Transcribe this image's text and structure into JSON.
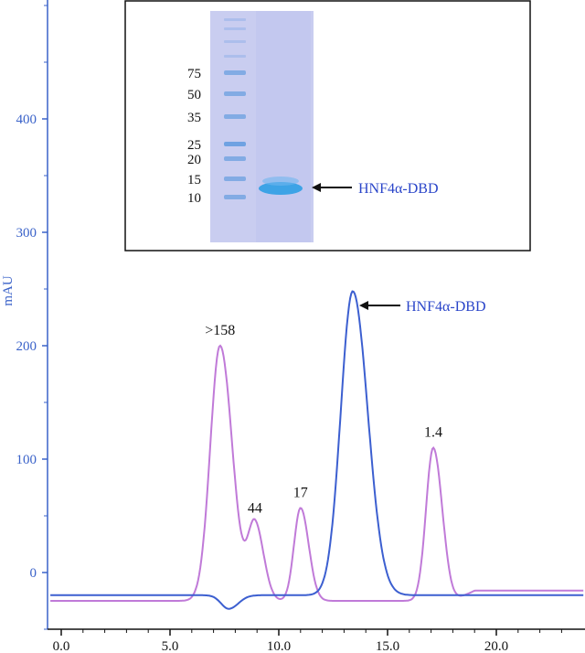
{
  "chart_data": {
    "type": "line",
    "title": "",
    "xlabel": "",
    "ylabel": "mAU",
    "xlim": [
      -0.5,
      24
    ],
    "ylim": [
      -50,
      500
    ],
    "x_ticks": [
      0,
      5,
      10,
      15,
      20
    ],
    "x_tick_labels": [
      "0.0",
      "5.0",
      "10.0",
      "15.0",
      "20.0"
    ],
    "y_ticks": [
      0,
      100,
      200,
      300,
      400
    ],
    "y_tick_labels": [
      "0",
      "100",
      "200",
      "300",
      "400"
    ],
    "grid": false,
    "series": [
      {
        "color": "#c07ad8",
        "baseline": -25,
        "peaks": [
          {
            "center": 7.3,
            "height": 225,
            "label": ">158"
          },
          {
            "center": 8.9,
            "height": 68,
            "label": "44"
          },
          {
            "center": 11.0,
            "height": 82,
            "label": "17"
          },
          {
            "center": 17.1,
            "height": 135,
            "label": "1.4"
          }
        ]
      },
      {
        "color": "#3c5fd0",
        "baseline": -20,
        "peaks": [
          {
            "center": 7.7,
            "height": -12
          },
          {
            "center": 13.4,
            "height": 268
          }
        ]
      }
    ],
    "annotations": [
      {
        "text": "HNF4α-DBD",
        "points_to": {
          "x": 13.4,
          "y": 235
        }
      }
    ]
  },
  "inset": {
    "markers": [
      "75",
      "50",
      "35",
      "25",
      "20",
      "15",
      "10"
    ],
    "band_label": "HNF4α-DBD",
    "colors": {
      "gel": "#c9cdf0",
      "band": "#3da3e6",
      "ladder": "#6a9fe0",
      "frame": "#111111"
    }
  }
}
